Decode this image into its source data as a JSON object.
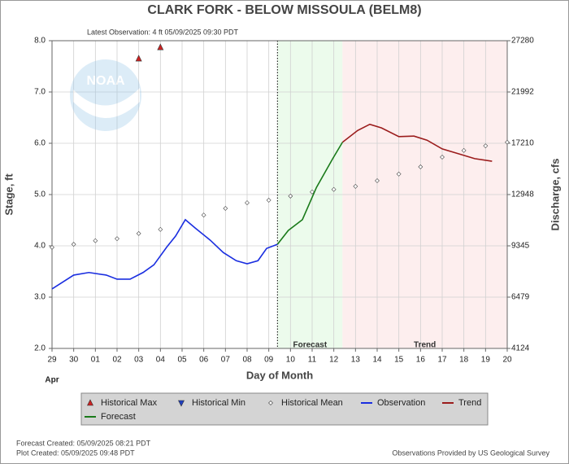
{
  "chart_data": {
    "type": "hydrograph",
    "title": "CLARK FORK - BELOW MISSOULA  (BELM8)",
    "subtitle": "Latest Observation: 4 ft 05/09/2025 09:30 PDT",
    "y_label": "Stage, ft",
    "y2_label": "Discharge, cfs",
    "x_label": "Day of Month",
    "x_month_label": "Apr",
    "logo_text": "NOAA",
    "forecast_region_label": "Forecast",
    "trend_region_label": "Trend",
    "footer_left": [
      "Forecast Created: 05/09/2025 08:21 PDT",
      "Plot Created: 05/09/2025 09:48 PDT"
    ],
    "footer_right": "Observations Provided by US Geological Survey",
    "grid": true,
    "xlim": [
      0,
      21
    ],
    "xticks": [
      {
        "value": 0,
        "label": "29"
      },
      {
        "value": 1,
        "label": "30"
      },
      {
        "value": 2,
        "label": "01"
      },
      {
        "value": 3,
        "label": "02"
      },
      {
        "value": 4,
        "label": "03"
      },
      {
        "value": 5,
        "label": "04"
      },
      {
        "value": 6,
        "label": "05"
      },
      {
        "value": 7,
        "label": "06"
      },
      {
        "value": 8,
        "label": "07"
      },
      {
        "value": 9,
        "label": "08"
      },
      {
        "value": 10,
        "label": "09"
      },
      {
        "value": 11,
        "label": "10"
      },
      {
        "value": 12,
        "label": "11"
      },
      {
        "value": 13,
        "label": "12"
      },
      {
        "value": 14,
        "label": "13"
      },
      {
        "value": 15,
        "label": "14"
      },
      {
        "value": 16,
        "label": "15"
      },
      {
        "value": 17,
        "label": "16"
      },
      {
        "value": 18,
        "label": "17"
      },
      {
        "value": 19,
        "label": "18"
      },
      {
        "value": 20,
        "label": "19"
      },
      {
        "value": 21,
        "label": "20"
      }
    ],
    "ylim": [
      2,
      8
    ],
    "yticks": [
      {
        "value": 2,
        "label": "2.0"
      },
      {
        "value": 3,
        "label": "3.0"
      },
      {
        "value": 4,
        "label": "4.0"
      },
      {
        "value": 5,
        "label": "5.0"
      },
      {
        "value": 6,
        "label": "6.0"
      },
      {
        "value": 7,
        "label": "7.0"
      },
      {
        "value": 8,
        "label": "8.0"
      }
    ],
    "y2lim": [
      4124,
      27280
    ],
    "y2ticks": [
      4124,
      6479,
      9345,
      12948,
      17210,
      21992,
      27280
    ],
    "series": [
      {
        "name": "Historical Max",
        "color": "#cc2222",
        "marker": "triangle-up",
        "x": [
          4,
          5
        ],
        "values": [
          7.65,
          7.87
        ]
      },
      {
        "name": "Historical Min",
        "color": "#1f3fbf",
        "marker": "triangle-down",
        "x": [],
        "values": []
      },
      {
        "name": "Historical Mean",
        "color": "#555555",
        "marker": "diamond",
        "x": [
          0,
          1,
          2,
          3,
          4,
          5,
          6,
          7,
          8,
          9,
          10,
          11,
          12,
          13,
          14,
          15,
          16,
          17,
          18,
          19,
          20,
          21
        ],
        "values": [
          3.97,
          4.03,
          4.1,
          4.14,
          4.24,
          4.32,
          null,
          4.6,
          4.73,
          4.84,
          4.89,
          4.97,
          5.05,
          5.1,
          5.16,
          5.27,
          5.4,
          5.54,
          5.73,
          5.86,
          5.95,
          6.02
        ]
      },
      {
        "name": "Observation",
        "color": "#1a2ee0",
        "marker": "line",
        "x": [
          0,
          1.0,
          1.7,
          2.5,
          3.0,
          3.6,
          4.2,
          4.7,
          5.3,
          5.7,
          6.15,
          6.6,
          7.3,
          7.9,
          8.5,
          9.0,
          9.5,
          9.9,
          10.4
        ],
        "values": [
          3.16,
          3.43,
          3.48,
          3.43,
          3.35,
          3.35,
          3.48,
          3.63,
          3.98,
          4.19,
          4.51,
          4.35,
          4.11,
          3.87,
          3.71,
          3.65,
          3.71,
          3.95,
          4.03
        ]
      },
      {
        "name": "Trend",
        "color": "#9b1c1c",
        "marker": "line",
        "x": [
          13.4,
          14.1,
          14.66,
          15.2,
          16.0,
          16.7,
          17.3,
          18.0,
          18.8,
          19.5,
          20.3
        ],
        "values": [
          6.02,
          6.25,
          6.37,
          6.3,
          6.13,
          6.14,
          6.06,
          5.89,
          5.79,
          5.7,
          5.65
        ]
      },
      {
        "name": "Forecast",
        "color": "#1a7a1a",
        "marker": "line",
        "x": [
          10.4,
          10.9,
          11.55,
          12.2,
          12.95,
          13.4
        ],
        "values": [
          4.03,
          4.3,
          4.51,
          5.14,
          5.7,
          6.02
        ]
      }
    ]
  }
}
